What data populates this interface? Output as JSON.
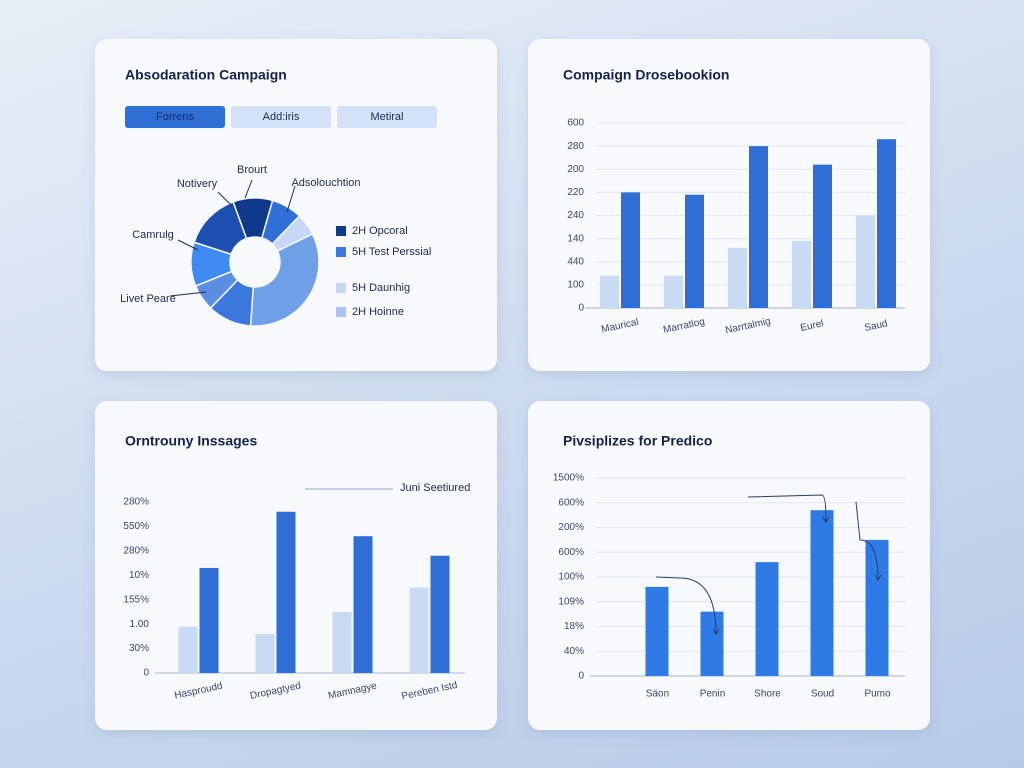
{
  "chart_data": [
    {
      "type": "pie",
      "title": "Absodaration Campaign",
      "tabs": [
        "Forrens",
        "Add:iris",
        "Metiral"
      ],
      "values": [
        9,
        7,
        5,
        30,
        10,
        6,
        10,
        13
      ],
      "colors": [
        "#0f3a8c",
        "#2f6fd6",
        "#c6d8f5",
        "#6f9fe6",
        "#3a78dc",
        "#5b8de0",
        "#3f8af0",
        "#1c4fb0"
      ],
      "callouts": [
        "Brourt",
        "Notivery",
        "Adsolouchtion",
        "Camrulg",
        "Livet Peare"
      ],
      "legend": [
        {
          "name": "2H Opcoral",
          "color": "#0f3a8c"
        },
        {
          "name": "5H Test Perssial",
          "color": "#3a78dc"
        },
        {
          "name": "5H Daunhig",
          "color": "#c6d8f5"
        },
        {
          "name": "2H Hoinne",
          "color": "#a9c6f0"
        }
      ]
    },
    {
      "type": "bar",
      "title": "Compaign Drosebookion",
      "categories": [
        "Maurical",
        "Marratlog",
        "Narrtalmig",
        "Eurel",
        "Saud"
      ],
      "series": [
        {
          "color": "#c9daf5",
          "values": [
            1.4,
            1.4,
            2.6,
            2.9,
            4.0
          ]
        },
        {
          "color": "#2f6fd6",
          "values": [
            5.0,
            4.9,
            7.0,
            6.2,
            7.3
          ]
        }
      ],
      "ylim": [
        0,
        8
      ],
      "yticks": [
        {
          "value": 0,
          "label": "0"
        },
        {
          "value": 1,
          "label": "100"
        },
        {
          "value": 2,
          "label": "440"
        },
        {
          "value": 3,
          "label": "140"
        },
        {
          "value": 4,
          "label": "240"
        },
        {
          "value": 5,
          "label": "220"
        },
        {
          "value": 6,
          "label": "200"
        },
        {
          "value": 7,
          "label": "280"
        },
        {
          "value": 8,
          "label": "600"
        }
      ],
      "grid": true
    },
    {
      "type": "bar",
      "title": "Orntrouny Inssages",
      "annotation": "Juni Seetiured",
      "categories": [
        "Hasproudd",
        "Dropagtyed",
        "Mamnagye",
        "Pereben Istd"
      ],
      "series": [
        {
          "color": "#c9daf5",
          "values": [
            1.9,
            1.6,
            2.5,
            3.5
          ]
        },
        {
          "color": "#2f6fd6",
          "values": [
            4.3,
            6.6,
            5.6,
            4.8
          ]
        }
      ],
      "ylim": [
        0,
        7
      ],
      "yticks": [
        {
          "value": 0,
          "label": "0"
        },
        {
          "value": 1,
          "label": "30%"
        },
        {
          "value": 2,
          "label": "1.00"
        },
        {
          "value": 3,
          "label": "155%"
        },
        {
          "value": 4,
          "label": "10%"
        },
        {
          "value": 5,
          "label": "280%"
        },
        {
          "value": 6,
          "label": "550%"
        },
        {
          "value": 7,
          "label": "280%"
        }
      ],
      "grid": false
    },
    {
      "type": "bar",
      "title": "Pivsiplizes for Predico",
      "categories": [
        "Säon",
        "Penin",
        "Shore",
        "Soud",
        "Pumo"
      ],
      "series": [
        {
          "color": "#2f7be6",
          "values": [
            3.6,
            2.6,
            4.6,
            6.7,
            5.5
          ]
        }
      ],
      "ylim": [
        0,
        8
      ],
      "yticks": [
        {
          "value": 0,
          "label": "0"
        },
        {
          "value": 1,
          "label": "40%"
        },
        {
          "value": 2,
          "label": "18%"
        },
        {
          "value": 3,
          "label": "109%"
        },
        {
          "value": 4,
          "label": "100%"
        },
        {
          "value": 5,
          "label": "600%"
        },
        {
          "value": 6,
          "label": "200%"
        },
        {
          "value": 7,
          "label": "600%"
        },
        {
          "value": 8,
          "label": "1500%"
        }
      ],
      "grid": true
    }
  ]
}
